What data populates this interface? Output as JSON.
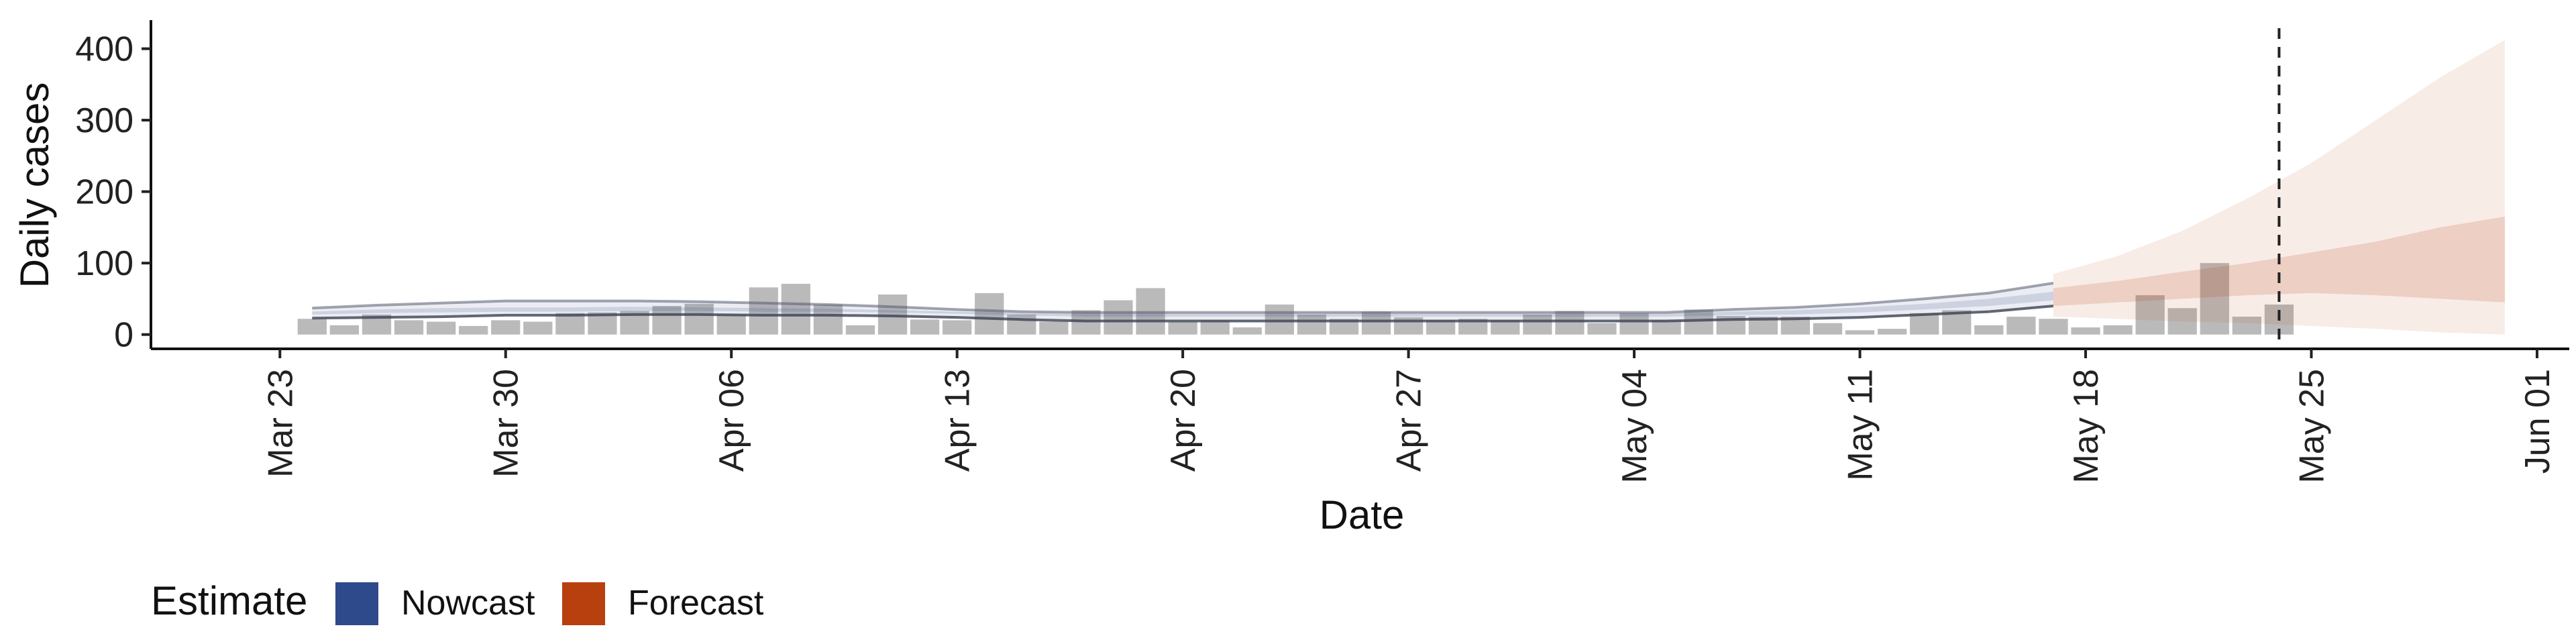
{
  "chart_data": {
    "type": "bar",
    "xlabel": "Date",
    "ylabel": "Daily cases",
    "ylim": [
      -20,
      440
    ],
    "y_ticks": [
      0,
      100,
      200,
      300,
      400
    ],
    "x_range": [
      "2020-03-19",
      "2020-06-02"
    ],
    "x_ticks": [
      {
        "date": "2020-03-23",
        "label": "Mar 23"
      },
      {
        "date": "2020-03-30",
        "label": "Mar 30"
      },
      {
        "date": "2020-04-06",
        "label": "Apr 06"
      },
      {
        "date": "2020-04-13",
        "label": "Apr 13"
      },
      {
        "date": "2020-04-20",
        "label": "Apr 20"
      },
      {
        "date": "2020-04-27",
        "label": "Apr 27"
      },
      {
        "date": "2020-05-04",
        "label": "May 04"
      },
      {
        "date": "2020-05-11",
        "label": "May 11"
      },
      {
        "date": "2020-05-18",
        "label": "May 18"
      },
      {
        "date": "2020-05-25",
        "label": "May 25"
      },
      {
        "date": "2020-06-01",
        "label": "Jun 01"
      }
    ],
    "grid": false,
    "legend_position": "bottom-left",
    "reference_line_date": "2020-05-24",
    "reported_cases": {
      "dates": [
        "2020-03-24",
        "2020-03-25",
        "2020-03-26",
        "2020-03-27",
        "2020-03-28",
        "2020-03-29",
        "2020-03-30",
        "2020-03-31",
        "2020-04-01",
        "2020-04-02",
        "2020-04-03",
        "2020-04-04",
        "2020-04-05",
        "2020-04-06",
        "2020-04-07",
        "2020-04-08",
        "2020-04-09",
        "2020-04-10",
        "2020-04-11",
        "2020-04-12",
        "2020-04-13",
        "2020-04-14",
        "2020-04-15",
        "2020-04-16",
        "2020-04-17",
        "2020-04-18",
        "2020-04-19",
        "2020-04-20",
        "2020-04-21",
        "2020-04-22",
        "2020-04-23",
        "2020-04-24",
        "2020-04-25",
        "2020-04-26",
        "2020-04-27",
        "2020-04-28",
        "2020-04-29",
        "2020-04-30",
        "2020-05-01",
        "2020-05-02",
        "2020-05-03",
        "2020-05-04",
        "2020-05-05",
        "2020-05-06",
        "2020-05-07",
        "2020-05-08",
        "2020-05-09",
        "2020-05-10",
        "2020-05-11",
        "2020-05-12",
        "2020-05-13",
        "2020-05-14",
        "2020-05-15",
        "2020-05-16",
        "2020-05-17",
        "2020-05-18",
        "2020-05-19",
        "2020-05-20",
        "2020-05-21",
        "2020-05-22",
        "2020-05-23",
        "2020-05-24"
      ],
      "values": [
        22,
        13,
        28,
        20,
        18,
        12,
        20,
        18,
        30,
        31,
        33,
        40,
        43,
        28,
        66,
        71,
        42,
        13,
        56,
        21,
        20,
        58,
        28,
        18,
        34,
        48,
        65,
        18,
        20,
        10,
        42,
        28,
        22,
        32,
        24,
        20,
        22,
        20,
        28,
        33,
        16,
        30,
        20,
        35,
        26,
        25,
        25,
        16,
        6,
        8,
        30,
        34,
        13,
        25,
        22,
        10,
        13,
        55,
        37,
        100,
        25,
        42
      ]
    },
    "series": [
      {
        "name": "Nowcast",
        "color": "#3a4f8a",
        "dates": [
          "2020-03-24",
          "2020-03-26",
          "2020-03-28",
          "2020-03-30",
          "2020-04-01",
          "2020-04-03",
          "2020-04-05",
          "2020-04-07",
          "2020-04-09",
          "2020-04-11",
          "2020-04-13",
          "2020-04-15",
          "2020-04-17",
          "2020-04-19",
          "2020-04-21",
          "2020-04-23",
          "2020-04-25",
          "2020-04-27",
          "2020-04-29",
          "2020-05-01",
          "2020-05-03",
          "2020-05-05",
          "2020-05-07",
          "2020-05-09",
          "2020-05-11",
          "2020-05-13",
          "2020-05-15",
          "2020-05-17"
        ],
        "outer_lower": [
          23,
          24,
          25,
          27,
          27,
          28,
          28,
          27,
          27,
          26,
          24,
          21,
          19,
          19,
          19,
          19,
          19,
          19,
          19,
          19,
          19,
          19,
          21,
          22,
          24,
          28,
          32,
          40
        ],
        "inner_lower": [
          28,
          30,
          31,
          32,
          32,
          33,
          33,
          32,
          32,
          31,
          29,
          27,
          25,
          25,
          25,
          25,
          25,
          25,
          25,
          25,
          25,
          25,
          27,
          28,
          31,
          35,
          40,
          48
        ],
        "inner_upper": [
          32,
          35,
          37,
          38,
          38,
          39,
          38,
          37,
          36,
          34,
          32,
          30,
          29,
          29,
          29,
          29,
          29,
          29,
          29,
          29,
          29,
          29,
          32,
          34,
          38,
          43,
          50,
          60
        ],
        "outer_upper": [
          37,
          41,
          44,
          47,
          47,
          47,
          46,
          44,
          42,
          39,
          35,
          32,
          31,
          31,
          31,
          31,
          31,
          31,
          31,
          31,
          31,
          31,
          35,
          38,
          43,
          50,
          58,
          72
        ]
      },
      {
        "name": "Forecast",
        "color": "#b8400f",
        "dates": [
          "2020-05-17",
          "2020-05-19",
          "2020-05-21",
          "2020-05-23",
          "2020-05-25",
          "2020-05-27",
          "2020-05-29",
          "2020-05-31"
        ],
        "outer_lower": [
          25,
          22,
          18,
          16,
          12,
          8,
          3,
          0
        ],
        "inner_lower": [
          40,
          45,
          50,
          55,
          58,
          55,
          50,
          45
        ],
        "inner_upper": [
          65,
          75,
          88,
          100,
          115,
          130,
          150,
          165
        ],
        "outer_upper": [
          85,
          110,
          145,
          190,
          240,
          300,
          360,
          412
        ]
      }
    ],
    "legend": {
      "title": "Estimate",
      "entries": [
        {
          "label": "Nowcast",
          "color": "#2f4a8a"
        },
        {
          "label": "Forecast",
          "color": "#b8400f"
        }
      ]
    }
  }
}
